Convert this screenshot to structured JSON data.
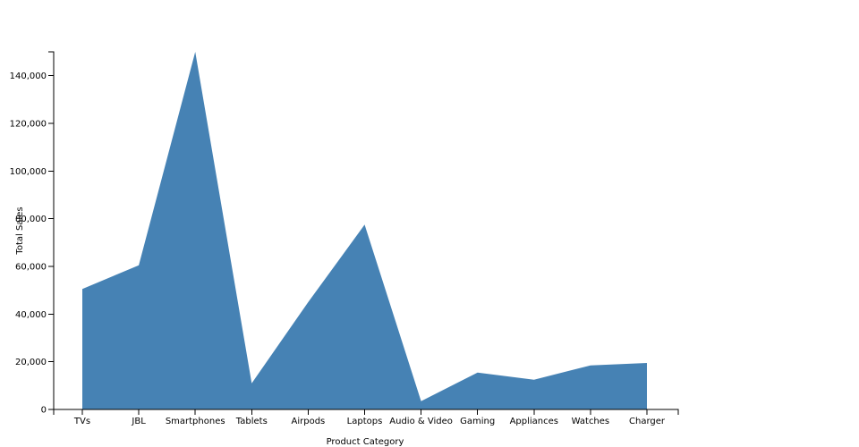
{
  "chart_data": {
    "type": "area",
    "title": "",
    "xlabel": "Product Category",
    "ylabel": "Total Sales",
    "categories": [
      "TVs",
      "JBL",
      "Smartphones",
      "Tablets",
      "Airpods",
      "Laptops",
      "Audio & Video",
      "Gaming",
      "Appliances",
      "Watches",
      "Charger"
    ],
    "series": [
      {
        "values": [
          50500,
          60500,
          150000,
          11000,
          45000,
          77500,
          3500,
          15500,
          12500,
          18500,
          19500
        ],
        "color": "#4682b4"
      }
    ],
    "ylim": [
      0,
      150000
    ],
    "yticks": [
      0,
      20000,
      40000,
      60000,
      80000,
      100000,
      120000,
      140000
    ],
    "ytick_labels": [
      "0",
      "20,000",
      "40,000",
      "60,000",
      "80,000",
      "100,000",
      "120,000",
      "140,000"
    ],
    "grid": false,
    "legend": "none"
  }
}
